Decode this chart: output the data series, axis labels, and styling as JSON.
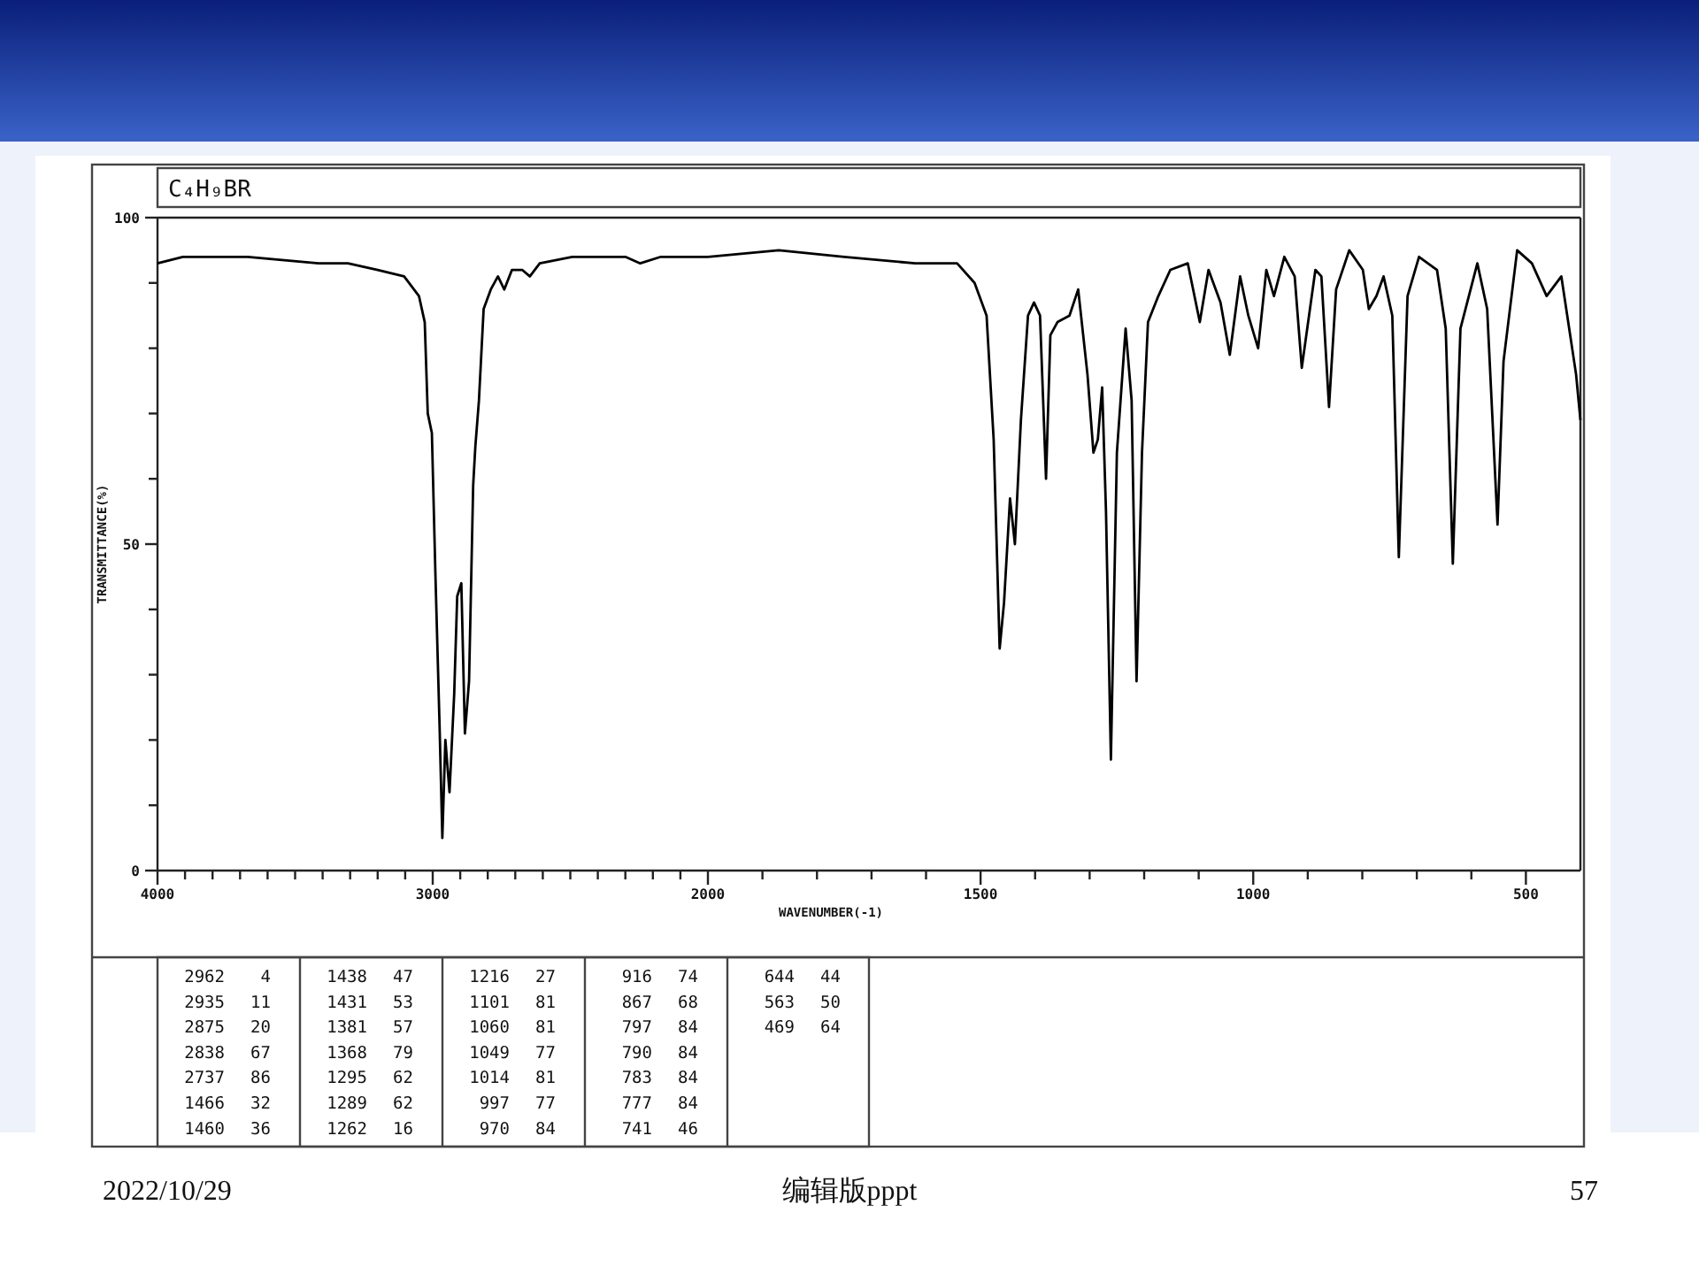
{
  "chart_data": [
    {
      "type": "line",
      "title": "C₄H₉BR",
      "ylabel": "TRANSMITTANCE(%)",
      "xlim": [
        4000,
        2000
      ],
      "ylim": [
        0,
        100
      ],
      "xticks": [
        4000,
        {
          "value": 3900,
          "label": null
        },
        {
          "value": 3800,
          "label": null
        },
        {
          "value": 3700,
          "label": null
        },
        {
          "value": 3600,
          "label": null
        },
        {
          "value": 3500,
          "label": null
        },
        {
          "value": 3400,
          "label": null
        },
        {
          "value": 3300,
          "label": null
        },
        {
          "value": 3200,
          "label": null
        },
        {
          "value": 3100,
          "label": null
        },
        3000,
        {
          "value": 2900,
          "label": null
        },
        {
          "value": 2800,
          "label": null
        },
        {
          "value": 2700,
          "label": null
        },
        {
          "value": 2600,
          "label": null
        },
        {
          "value": 2500,
          "label": null
        },
        {
          "value": 2400,
          "label": null
        },
        {
          "value": 2300,
          "label": null
        },
        {
          "value": 2200,
          "label": null
        },
        {
          "value": 2100,
          "label": null
        },
        2000
      ],
      "yticks": [
        0,
        {
          "value": 10,
          "label": null
        },
        {
          "value": 20,
          "label": null
        },
        {
          "value": 30,
          "label": null
        },
        {
          "value": 40,
          "label": null
        },
        50,
        {
          "value": 60,
          "label": null
        },
        {
          "value": 70,
          "label": null
        },
        {
          "value": 80,
          "label": null
        },
        {
          "value": 90,
          "label": null
        },
        100
      ],
      "grid": false,
      "marker": "none",
      "line_style": "solid",
      "series": [
        {
          "color": "#000000",
          "x": [
            4000,
            3908,
            3672,
            3415,
            3308,
            3200,
            3104,
            3050,
            3029,
            3018,
            3003,
            2990,
            2975,
            2965,
            2954,
            2939,
            2922,
            2911,
            2896,
            2883,
            2868,
            2853,
            2845,
            2832,
            2815,
            2789,
            2763,
            2740,
            2712,
            2675,
            2647,
            2611,
            2493,
            2300,
            2246,
            2171,
            2000
          ],
          "values": [
            93,
            94,
            94,
            93,
            93,
            92,
            91,
            88,
            84,
            70,
            67,
            45,
            22,
            5,
            20,
            12,
            27,
            42,
            44,
            21,
            29,
            59,
            65,
            72,
            86,
            89,
            91,
            89,
            92,
            92,
            91,
            93,
            94,
            94,
            93,
            94,
            94
          ]
        }
      ],
      "annotations": [
        "2962 4",
        "2935 11",
        "2875 20",
        "2838 67",
        "2737 86",
        "1466 32",
        "1460 36",
        "1438 47",
        "1431 53",
        "1381 57",
        "1368 79",
        "1295 62",
        "1289 62",
        "1262 16",
        "1216 27",
        "1101 81",
        "1060 81",
        "1049 77",
        "1014 81",
        "997 77",
        "970 84",
        "916 74",
        "867 68",
        "797 84",
        "790 84",
        "783 84",
        "777 84",
        "741 46",
        "644 44",
        "563 50",
        "469 64",
        "2022/10/29",
        "编辑版pppt",
        "57"
      ]
    },
    {
      "type": "line",
      "xlabel": "WAVENUMBER(-1)",
      "xlim": [
        2000,
        400
      ],
      "ylim": [
        0,
        100
      ],
      "tick_labels": "x",
      "xticks": [
        {
          "value": 1900,
          "label": null
        },
        {
          "value": 1800,
          "label": null
        },
        {
          "value": 1700,
          "label": null
        },
        {
          "value": 1600,
          "label": null
        },
        1500,
        {
          "value": 1400,
          "label": null
        },
        {
          "value": 1300,
          "label": null
        },
        {
          "value": 1200,
          "label": null
        },
        {
          "value": 1100,
          "label": null
        },
        1000,
        {
          "value": 900,
          "label": null
        },
        {
          "value": 800,
          "label": null
        },
        {
          "value": 700,
          "label": null
        },
        {
          "value": 600,
          "label": null
        },
        500
      ],
      "grid": false,
      "marker": "none",
      "line_style": "solid",
      "series": [
        {
          "color": "#000000",
          "x": [
            2000,
            1870,
            1750,
            1620,
            1543,
            1511,
            1489,
            1476,
            1465,
            1457,
            1446,
            1437,
            1426,
            1413,
            1402,
            1391,
            1380,
            1372,
            1359,
            1337,
            1321,
            1304,
            1293,
            1285,
            1277,
            1270,
            1261,
            1250,
            1234,
            1223,
            1214,
            1204,
            1193,
            1174,
            1152,
            1120,
            1098,
            1082,
            1060,
            1043,
            1024,
            1009,
            991,
            976,
            962,
            943,
            924,
            911,
            886,
            875,
            861,
            848,
            824,
            799,
            788,
            774,
            761,
            745,
            733,
            717,
            696,
            663,
            647,
            634,
            620,
            589,
            571,
            552,
            541,
            516,
            489,
            462,
            435,
            408,
            400
          ],
          "values": [
            94,
            95,
            94,
            93,
            93,
            90,
            85,
            66,
            34,
            41,
            57,
            50,
            69,
            85,
            87,
            85,
            60,
            82,
            84,
            85,
            89,
            76,
            64,
            66,
            74,
            55,
            17,
            64,
            83,
            72,
            29,
            64,
            84,
            88,
            92,
            93,
            84,
            92,
            87,
            79,
            91,
            85,
            80,
            92,
            88,
            94,
            91,
            77,
            92,
            91,
            71,
            89,
            95,
            92,
            86,
            88,
            91,
            85,
            48,
            88,
            94,
            92,
            83,
            47,
            83,
            93,
            86,
            53,
            78,
            95,
            93,
            88,
            91,
            76,
            69
          ]
        }
      ]
    }
  ]
}
